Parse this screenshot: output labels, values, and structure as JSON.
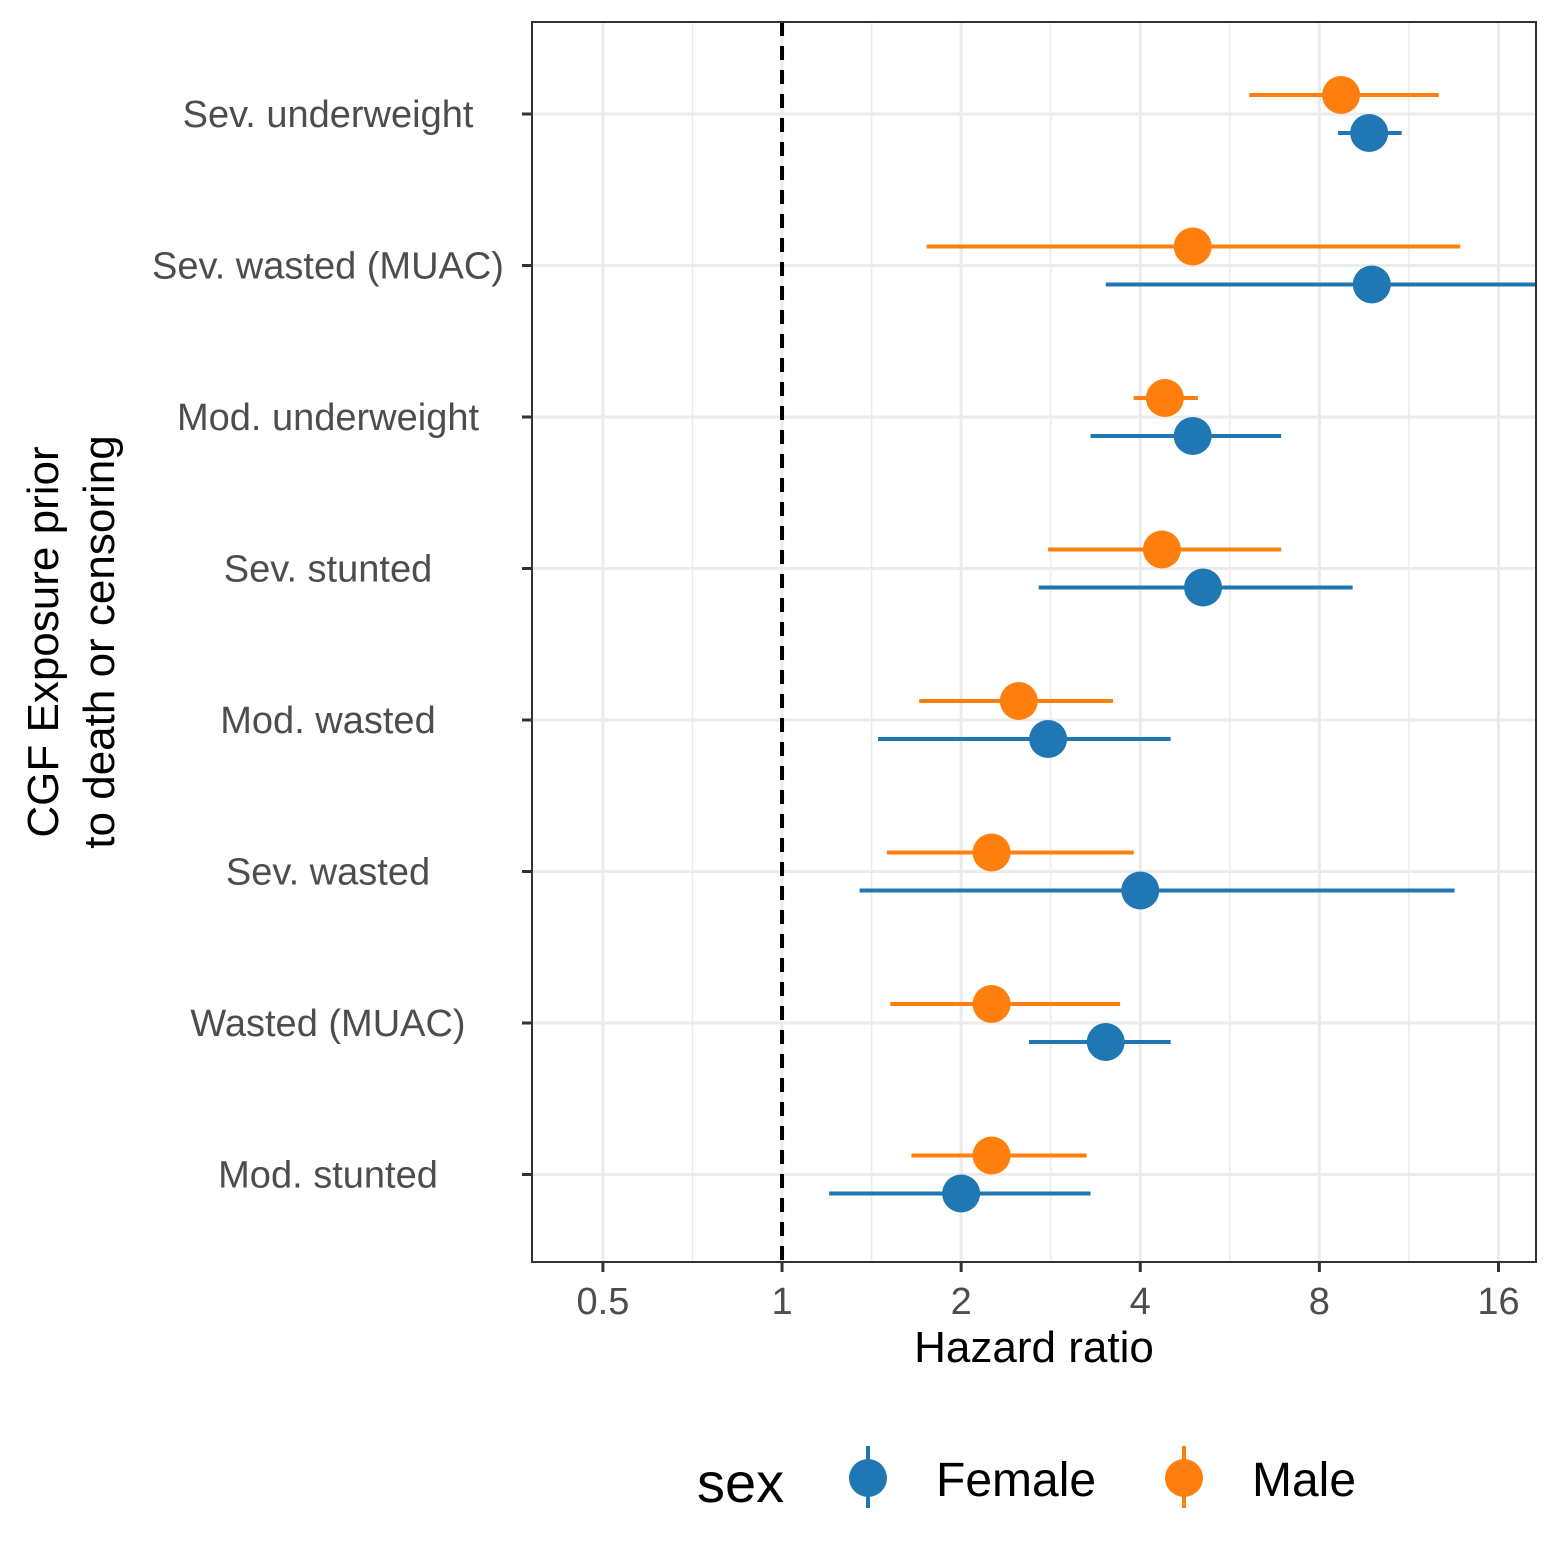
{
  "chart_data": {
    "type": "scatter",
    "subtype": "forest-plot",
    "xlabel": "Hazard ratio",
    "ylabel": "CGF Exposure prior\nto death or censoring",
    "x_scale": "log2",
    "xlim": [
      0.38,
      18.5
    ],
    "x_ticks": [
      0.5,
      1,
      2,
      4,
      8,
      16
    ],
    "x_tick_labels": [
      "0.5",
      "1",
      "2",
      "4",
      "8",
      "16"
    ],
    "reference_line": 1,
    "grid": true,
    "legend": {
      "title": "sex",
      "position": "bottom"
    },
    "categories": [
      "Sev. underweight",
      "Sev. wasted (MUAC)",
      "Mod. underweight",
      "Sev. stunted",
      "Mod. wasted",
      "Sev. wasted",
      "Wasted (MUAC)",
      "Mod. stunted"
    ],
    "series": [
      {
        "name": "Female",
        "color": "#1f77b4",
        "points": [
          {
            "category": "Sev. underweight",
            "est": 9.7,
            "lo": 8.6,
            "hi": 11.0
          },
          {
            "category": "Sev. wasted (MUAC)",
            "est": 9.8,
            "lo": 3.5,
            "hi": 18.5
          },
          {
            "category": "Mod. underweight",
            "est": 4.9,
            "lo": 3.3,
            "hi": 6.9
          },
          {
            "category": "Sev. stunted",
            "est": 5.1,
            "lo": 2.7,
            "hi": 9.1
          },
          {
            "category": "Mod. wasted",
            "est": 2.8,
            "lo": 1.45,
            "hi": 4.5
          },
          {
            "category": "Sev. wasted",
            "est": 4.0,
            "lo": 1.35,
            "hi": 13.5
          },
          {
            "category": "Wasted (MUAC)",
            "est": 3.5,
            "lo": 2.6,
            "hi": 4.5
          },
          {
            "category": "Mod. stunted",
            "est": 2.0,
            "lo": 1.2,
            "hi": 3.3
          }
        ]
      },
      {
        "name": "Male",
        "color": "#ff7f0e",
        "points": [
          {
            "category": "Sev. underweight",
            "est": 8.7,
            "lo": 6.1,
            "hi": 12.7
          },
          {
            "category": "Sev. wasted (MUAC)",
            "est": 4.9,
            "lo": 1.75,
            "hi": 13.8
          },
          {
            "category": "Mod. underweight",
            "est": 4.4,
            "lo": 3.9,
            "hi": 5.0
          },
          {
            "category": "Sev. stunted",
            "est": 4.35,
            "lo": 2.8,
            "hi": 6.9
          },
          {
            "category": "Mod. wasted",
            "est": 2.5,
            "lo": 1.7,
            "hi": 3.6
          },
          {
            "category": "Sev. wasted",
            "est": 2.25,
            "lo": 1.5,
            "hi": 3.9
          },
          {
            "category": "Wasted (MUAC)",
            "est": 2.25,
            "lo": 1.52,
            "hi": 3.7
          },
          {
            "category": "Mod. stunted",
            "est": 2.25,
            "lo": 1.65,
            "hi": 3.25
          }
        ]
      }
    ]
  }
}
